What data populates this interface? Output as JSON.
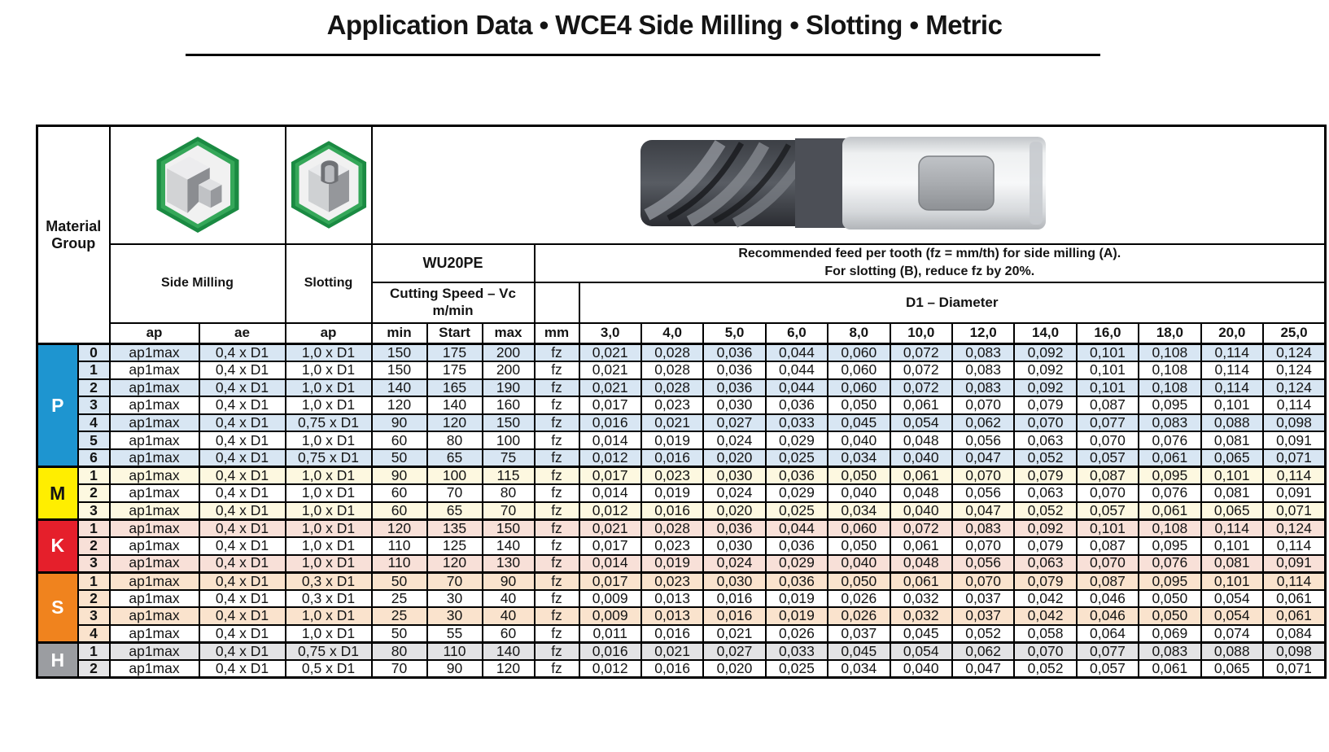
{
  "title": "Application Data • WCE4 Side Milling • Slotting • Metric",
  "header": {
    "material_group_line1": "Material",
    "material_group_line2": "Group",
    "side_milling": "Side Milling",
    "slotting": "Slotting",
    "grade": "WU20PE",
    "cutting_speed_line1": "Cutting Speed – Vc",
    "cutting_speed_line2": "m/min",
    "feed_note_line1": "Recommended feed per tooth (fz = mm/th) for side milling (A).",
    "feed_note_line2": "For slotting (B), reduce fz by 20%.",
    "diameter_label": "D1 – Diameter",
    "col_ap_side": "ap",
    "col_ae_side": "ae",
    "col_ap_slot": "ap",
    "col_min": "min",
    "col_start": "Start",
    "col_max": "max",
    "col_mm": "mm",
    "fz_symbol": "fz",
    "diameters": [
      "3,0",
      "4,0",
      "5,0",
      "6,0",
      "8,0",
      "10,0",
      "12,0",
      "14,0",
      "16,0",
      "18,0",
      "20,0",
      "25,0"
    ]
  },
  "icons": {
    "side_milling_icon": "hexagon-stepped-block",
    "slotting_icon": "hexagon-slotted-block",
    "tool_photo": "end-mill-cutter-photo",
    "hex_frame_color": "#1a8a42",
    "hex_bevel_color": "#35a759"
  },
  "groups": [
    {
      "letter": "P",
      "color": "#1e95d0",
      "letter_color": "#ffffff",
      "tint": "#d8e6f3",
      "rows": [
        {
          "sub": "0",
          "ap": "ap1max",
          "ae": "0,4 x D1",
          "slot_ap": "1,0 x D1",
          "min": "150",
          "start": "175",
          "max": "200",
          "fz": [
            "0,021",
            "0,028",
            "0,036",
            "0,044",
            "0,060",
            "0,072",
            "0,083",
            "0,092",
            "0,101",
            "0,108",
            "0,114",
            "0,124"
          ]
        },
        {
          "sub": "1",
          "ap": "ap1max",
          "ae": "0,4 x D1",
          "slot_ap": "1,0 x D1",
          "min": "150",
          "start": "175",
          "max": "200",
          "fz": [
            "0,021",
            "0,028",
            "0,036",
            "0,044",
            "0,060",
            "0,072",
            "0,083",
            "0,092",
            "0,101",
            "0,108",
            "0,114",
            "0,124"
          ]
        },
        {
          "sub": "2",
          "ap": "ap1max",
          "ae": "0,4 x D1",
          "slot_ap": "1,0 x D1",
          "min": "140",
          "start": "165",
          "max": "190",
          "fz": [
            "0,021",
            "0,028",
            "0,036",
            "0,044",
            "0,060",
            "0,072",
            "0,083",
            "0,092",
            "0,101",
            "0,108",
            "0,114",
            "0,124"
          ]
        },
        {
          "sub": "3",
          "ap": "ap1max",
          "ae": "0,4 x D1",
          "slot_ap": "1,0 x D1",
          "min": "120",
          "start": "140",
          "max": "160",
          "fz": [
            "0,017",
            "0,023",
            "0,030",
            "0,036",
            "0,050",
            "0,061",
            "0,070",
            "0,079",
            "0,087",
            "0,095",
            "0,101",
            "0,114"
          ]
        },
        {
          "sub": "4",
          "ap": "ap1max",
          "ae": "0,4 x D1",
          "slot_ap": "0,75 x D1",
          "min": "90",
          "start": "120",
          "max": "150",
          "fz": [
            "0,016",
            "0,021",
            "0,027",
            "0,033",
            "0,045",
            "0,054",
            "0,062",
            "0,070",
            "0,077",
            "0,083",
            "0,088",
            "0,098"
          ]
        },
        {
          "sub": "5",
          "ap": "ap1max",
          "ae": "0,4 x D1",
          "slot_ap": "1,0 x D1",
          "min": "60",
          "start": "80",
          "max": "100",
          "fz": [
            "0,014",
            "0,019",
            "0,024",
            "0,029",
            "0,040",
            "0,048",
            "0,056",
            "0,063",
            "0,070",
            "0,076",
            "0,081",
            "0,091"
          ]
        },
        {
          "sub": "6",
          "ap": "ap1max",
          "ae": "0,4 x D1",
          "slot_ap": "0,75 x D1",
          "min": "50",
          "start": "65",
          "max": "75",
          "fz": [
            "0,012",
            "0,016",
            "0,020",
            "0,025",
            "0,034",
            "0,040",
            "0,047",
            "0,052",
            "0,057",
            "0,061",
            "0,065",
            "0,071"
          ]
        }
      ]
    },
    {
      "letter": "M",
      "color": "#ffee00",
      "letter_color": "#141414",
      "tint": "#fdf8e0",
      "rows": [
        {
          "sub": "1",
          "ap": "ap1max",
          "ae": "0,4 x D1",
          "slot_ap": "1,0 x D1",
          "min": "90",
          "start": "100",
          "max": "115",
          "fz": [
            "0,017",
            "0,023",
            "0,030",
            "0,036",
            "0,050",
            "0,061",
            "0,070",
            "0,079",
            "0,087",
            "0,095",
            "0,101",
            "0,114"
          ]
        },
        {
          "sub": "2",
          "ap": "ap1max",
          "ae": "0,4 x D1",
          "slot_ap": "1,0 x D1",
          "min": "60",
          "start": "70",
          "max": "80",
          "fz": [
            "0,014",
            "0,019",
            "0,024",
            "0,029",
            "0,040",
            "0,048",
            "0,056",
            "0,063",
            "0,070",
            "0,076",
            "0,081",
            "0,091"
          ]
        },
        {
          "sub": "3",
          "ap": "ap1max",
          "ae": "0,4 x D1",
          "slot_ap": "1,0 x D1",
          "min": "60",
          "start": "65",
          "max": "70",
          "fz": [
            "0,012",
            "0,016",
            "0,020",
            "0,025",
            "0,034",
            "0,040",
            "0,047",
            "0,052",
            "0,057",
            "0,061",
            "0,065",
            "0,071"
          ]
        }
      ]
    },
    {
      "letter": "K",
      "color": "#e51f2b",
      "letter_color": "#ffffff",
      "tint": "#f8e0d8",
      "rows": [
        {
          "sub": "1",
          "ap": "ap1max",
          "ae": "0,4 x D1",
          "slot_ap": "1,0 x D1",
          "min": "120",
          "start": "135",
          "max": "150",
          "fz": [
            "0,021",
            "0,028",
            "0,036",
            "0,044",
            "0,060",
            "0,072",
            "0,083",
            "0,092",
            "0,101",
            "0,108",
            "0,114",
            "0,124"
          ]
        },
        {
          "sub": "2",
          "ap": "ap1max",
          "ae": "0,4 x D1",
          "slot_ap": "1,0 x D1",
          "min": "110",
          "start": "125",
          "max": "140",
          "fz": [
            "0,017",
            "0,023",
            "0,030",
            "0,036",
            "0,050",
            "0,061",
            "0,070",
            "0,079",
            "0,087",
            "0,095",
            "0,101",
            "0,114"
          ]
        },
        {
          "sub": "3",
          "ap": "ap1max",
          "ae": "0,4 x D1",
          "slot_ap": "1,0 x D1",
          "min": "110",
          "start": "120",
          "max": "130",
          "fz": [
            "0,014",
            "0,019",
            "0,024",
            "0,029",
            "0,040",
            "0,048",
            "0,056",
            "0,063",
            "0,070",
            "0,076",
            "0,081",
            "0,091"
          ]
        }
      ]
    },
    {
      "letter": "S",
      "color": "#f0831e",
      "letter_color": "#ffffff",
      "tint": "#fae3cd",
      "rows": [
        {
          "sub": "1",
          "ap": "ap1max",
          "ae": "0,4 x D1",
          "slot_ap": "0,3 x D1",
          "min": "50",
          "start": "70",
          "max": "90",
          "fz": [
            "0,017",
            "0,023",
            "0,030",
            "0,036",
            "0,050",
            "0,061",
            "0,070",
            "0,079",
            "0,087",
            "0,095",
            "0,101",
            "0,114"
          ]
        },
        {
          "sub": "2",
          "ap": "ap1max",
          "ae": "0,4 x D1",
          "slot_ap": "0,3 x D1",
          "min": "25",
          "start": "30",
          "max": "40",
          "fz": [
            "0,009",
            "0,013",
            "0,016",
            "0,019",
            "0,026",
            "0,032",
            "0,037",
            "0,042",
            "0,046",
            "0,050",
            "0,054",
            "0,061"
          ]
        },
        {
          "sub": "3",
          "ap": "ap1max",
          "ae": "0,4 x D1",
          "slot_ap": "1,0 x D1",
          "min": "25",
          "start": "30",
          "max": "40",
          "fz": [
            "0,009",
            "0,013",
            "0,016",
            "0,019",
            "0,026",
            "0,032",
            "0,037",
            "0,042",
            "0,046",
            "0,050",
            "0,054",
            "0,061"
          ]
        },
        {
          "sub": "4",
          "ap": "ap1max",
          "ae": "0,4 x D1",
          "slot_ap": "1,0 x D1",
          "min": "50",
          "start": "55",
          "max": "60",
          "fz": [
            "0,011",
            "0,016",
            "0,021",
            "0,026",
            "0,037",
            "0,045",
            "0,052",
            "0,058",
            "0,064",
            "0,069",
            "0,074",
            "0,084"
          ]
        }
      ]
    },
    {
      "letter": "H",
      "color": "#9b9da1",
      "letter_color": "#ffffff",
      "tint": "#e3e3e5",
      "rows": [
        {
          "sub": "1",
          "ap": "ap1max",
          "ae": "0,4 x D1",
          "slot_ap": "0,75 x D1",
          "min": "80",
          "start": "110",
          "max": "140",
          "fz": [
            "0,016",
            "0,021",
            "0,027",
            "0,033",
            "0,045",
            "0,054",
            "0,062",
            "0,070",
            "0,077",
            "0,083",
            "0,088",
            "0,098"
          ]
        },
        {
          "sub": "2",
          "ap": "ap1max",
          "ae": "0,4 x D1",
          "slot_ap": "0,5 x D1",
          "min": "70",
          "start": "90",
          "max": "120",
          "fz": [
            "0,012",
            "0,016",
            "0,020",
            "0,025",
            "0,034",
            "0,040",
            "0,047",
            "0,052",
            "0,057",
            "0,061",
            "0,065",
            "0,071"
          ]
        }
      ]
    }
  ]
}
